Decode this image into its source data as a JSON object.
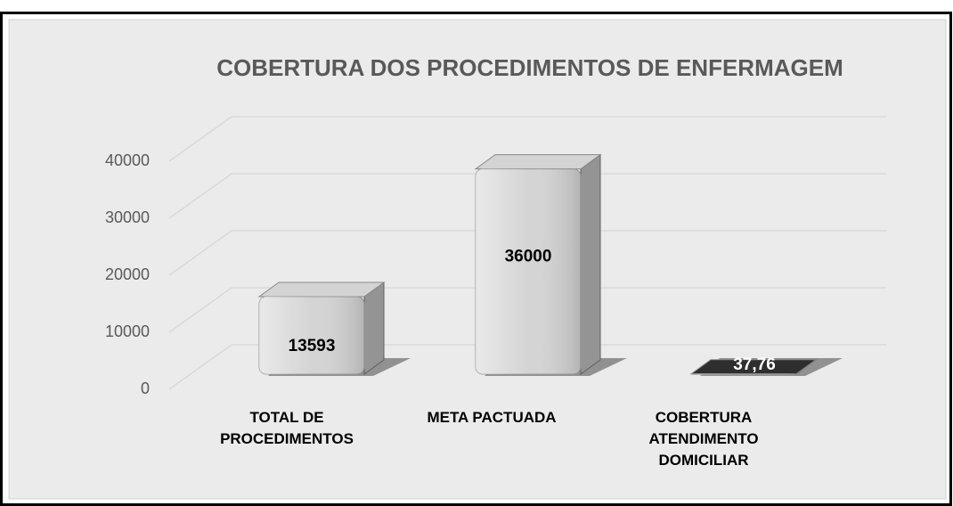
{
  "chart_data": {
    "type": "bar3d",
    "title": "COBERTURA DOS PROCEDIMENTOS DE ENFERMAGEM",
    "categories": [
      "TOTAL DE\nPROCEDIMENTOS",
      "META PACTUADA",
      "COBERTURA\nATENDIMENTO\nDOMICILIAR"
    ],
    "values": [
      13593,
      36000,
      37.76
    ],
    "value_labels": [
      "13593",
      "36000",
      "37,76"
    ],
    "colors": [
      "#d4d4d4",
      "#d4d4d4",
      "#2e2e2e"
    ],
    "ylim": [
      0,
      50000
    ],
    "yticks": [
      0,
      10000,
      20000,
      30000,
      40000
    ],
    "grid": true
  }
}
